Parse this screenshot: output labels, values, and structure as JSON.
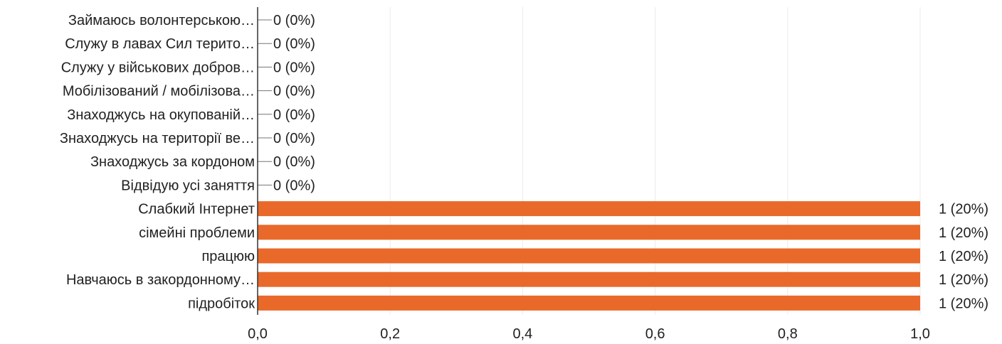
{
  "chart_data": {
    "type": "bar",
    "orientation": "horizontal",
    "title": "",
    "xlabel": "",
    "ylabel": "",
    "xlim": [
      0,
      1
    ],
    "grid": true,
    "bar_color": "#e8692a",
    "categories": [
      "Займаюсь волонтерською…",
      "Служу в лавах Сил терито…",
      "Служу у військових добров…",
      "Мобілізований / мобілізова…",
      "Знаходжусь на окупованій…",
      "Знаходжусь на території ве…",
      "Знаходжусь за кордоном",
      "Відвідую усі заняття",
      "Слабкий Інтернет",
      "сімейні проблеми",
      "працюю",
      "Навчаюсь в закордонному…",
      "підробіток"
    ],
    "values": [
      0,
      0,
      0,
      0,
      0,
      0,
      0,
      0,
      1,
      1,
      1,
      1,
      1
    ],
    "value_labels": [
      "0 (0%)",
      "0 (0%)",
      "0 (0%)",
      "0 (0%)",
      "0 (0%)",
      "0 (0%)",
      "0 (0%)",
      "0 (0%)",
      "1 (20%)",
      "1 (20%)",
      "1 (20%)",
      "1 (20%)",
      "1 (20%)"
    ],
    "x_ticks": [
      0,
      0.2,
      0.4,
      0.6,
      0.8,
      1.0
    ],
    "x_tick_labels": [
      "0,0",
      "0,2",
      "0,4",
      "0,6",
      "0,8",
      "1,0"
    ]
  }
}
